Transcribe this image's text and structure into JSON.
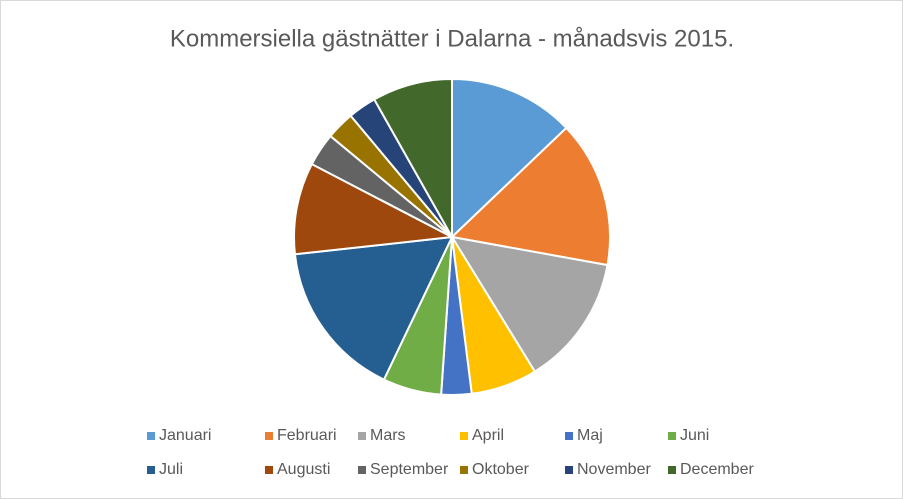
{
  "chart_data": {
    "type": "pie",
    "title": "Kommersiella gästnätter i Dalarna - månadsvis 2015.",
    "categories": [
      "Januari",
      "Februari",
      "Mars",
      "April",
      "Maj",
      "Juni",
      "Juli",
      "Augusti",
      "September",
      "Oktober",
      "November",
      "December"
    ],
    "values": [
      12.9,
      15.0,
      13.4,
      6.8,
      3.1,
      6.0,
      16.2,
      9.4,
      3.4,
      2.9,
      2.9,
      8.2
    ],
    "colors": [
      "#5b9bd5",
      "#ed7d31",
      "#a5a5a5",
      "#ffc000",
      "#4472c4",
      "#70ad47",
      "#255e91",
      "#9e480e",
      "#636363",
      "#997300",
      "#264478",
      "#43682b"
    ],
    "legend": "bottom"
  }
}
